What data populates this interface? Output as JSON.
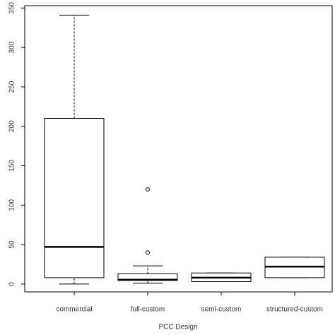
{
  "chart_data": {
    "type": "box",
    "x_label": "PCC Design",
    "categories": [
      "commercial",
      "full-custom",
      "semi-custom",
      "structured-custom"
    ],
    "boxes": [
      {
        "min": 0,
        "q1": 8,
        "median": 47,
        "q3": 210,
        "max": 341,
        "outliers": []
      },
      {
        "min": 1,
        "q1": 4.5,
        "median": 5.5,
        "q3": 13,
        "max": 23,
        "outliers": [
          120,
          40
        ]
      },
      {
        "min": 3,
        "q1": 3,
        "median": 8,
        "q3": 14,
        "max": 14,
        "outliers": []
      },
      {
        "min": 8,
        "q1": 8,
        "median": 22,
        "q3": 34,
        "max": 34,
        "outliers": []
      }
    ],
    "color": "#000000",
    "ylim": [
      -10,
      353
    ],
    "yticks": [
      0,
      50,
      100,
      150,
      200,
      250,
      300,
      350
    ]
  }
}
